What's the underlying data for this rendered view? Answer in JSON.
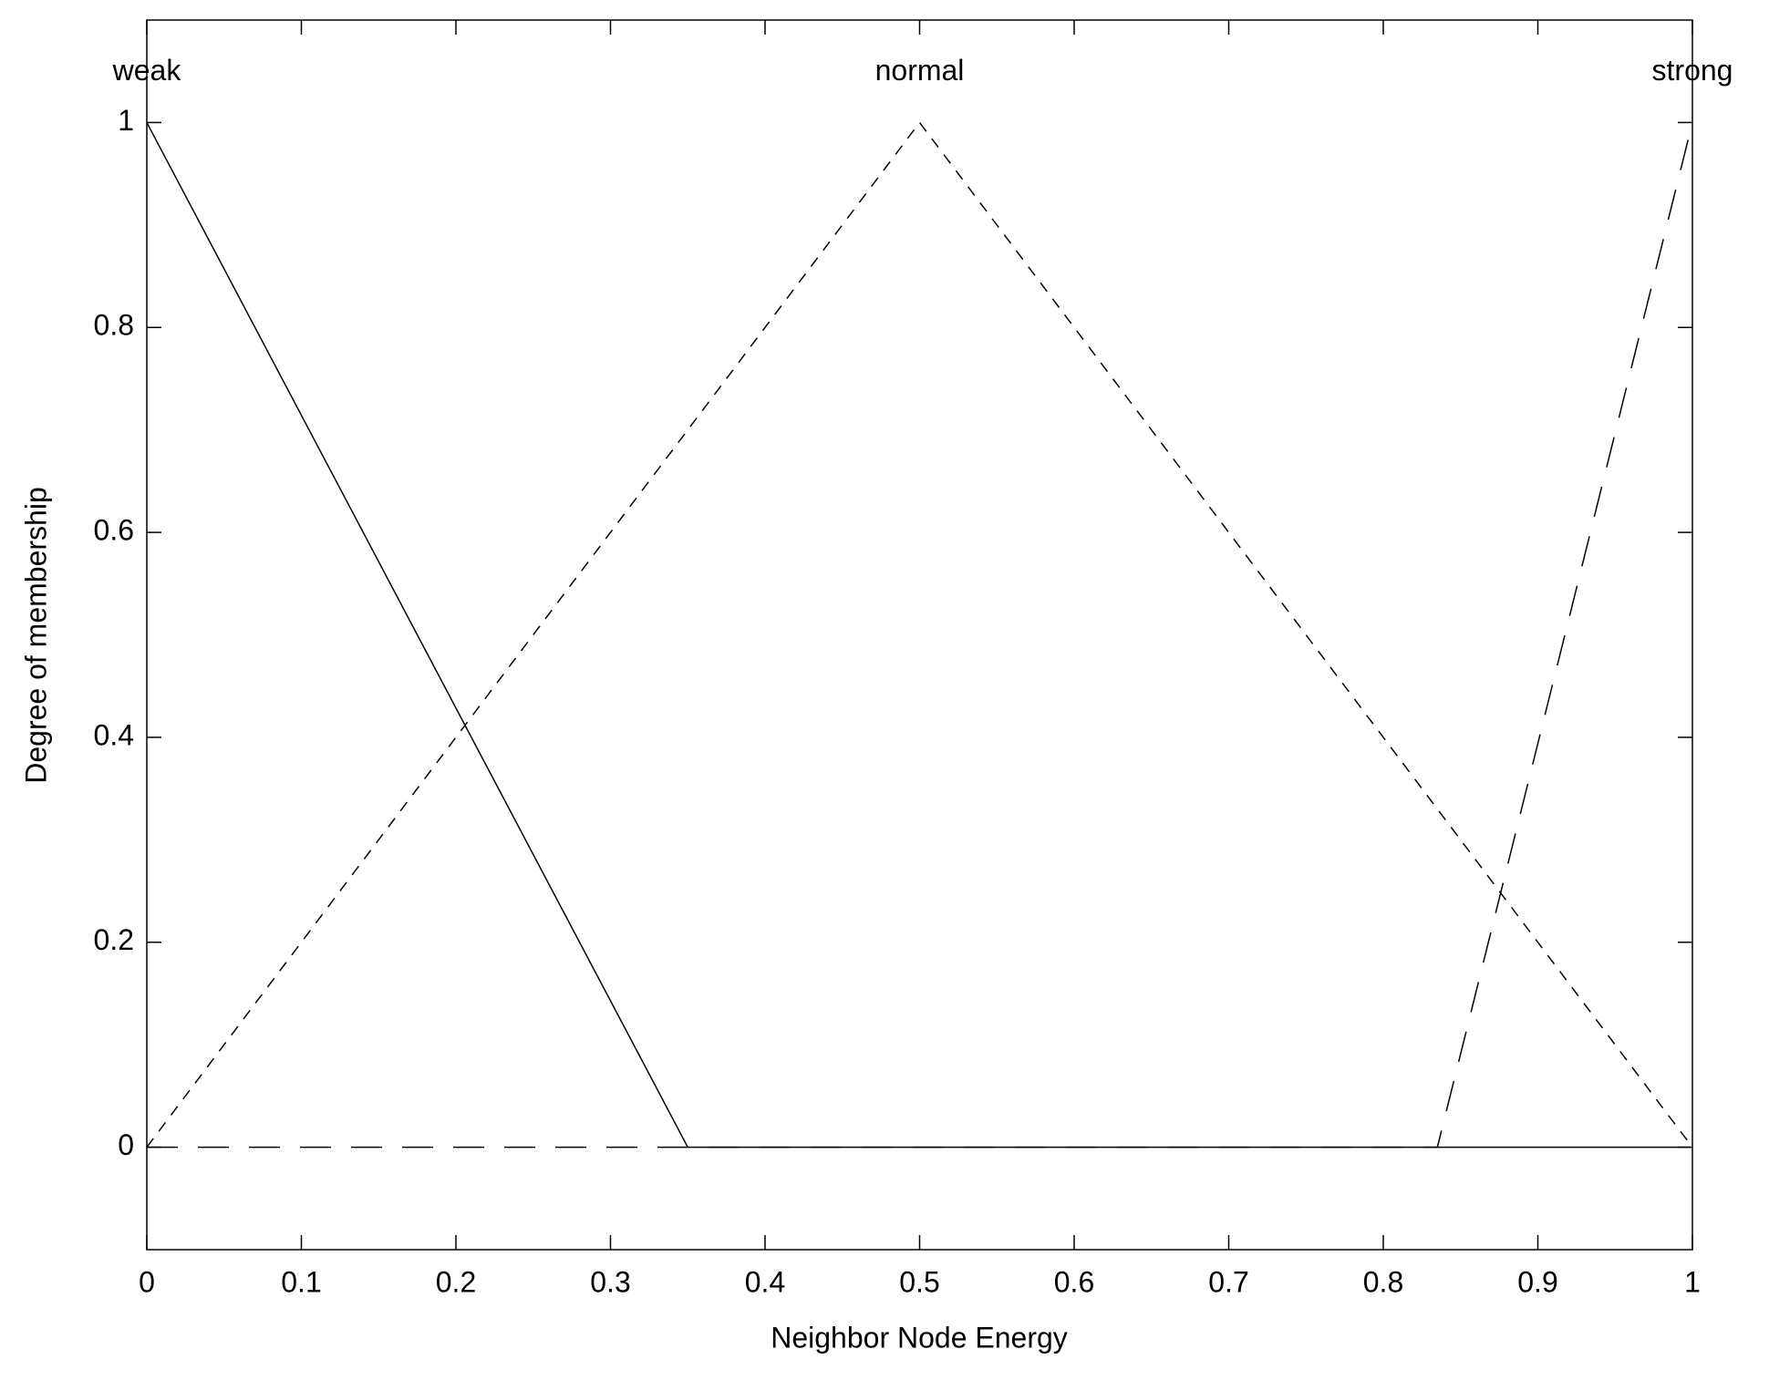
{
  "chart_data": {
    "type": "line",
    "xlabel": "Neighbor Node Energy",
    "ylabel": "Degree of membership",
    "xlim": [
      0,
      1
    ],
    "xticks": [
      0,
      0.1,
      0.2,
      0.3,
      0.4,
      0.5,
      0.6,
      0.7,
      0.8,
      0.9,
      1
    ],
    "ylim": [
      -0.1,
      1.1
    ],
    "yticks": [
      0,
      0.2,
      0.4,
      0.6,
      0.8,
      1
    ],
    "series": [
      {
        "name": "weak",
        "color": "#000000",
        "dash": "solid",
        "x": [
          0,
          0.35,
          1
        ],
        "values": [
          1,
          0,
          0
        ]
      },
      {
        "name": "normal",
        "color": "#000000",
        "dash": "dashed",
        "x": [
          0,
          0.5,
          1
        ],
        "values": [
          0,
          1,
          0
        ]
      },
      {
        "name": "strong",
        "color": "#000000",
        "dash": "longdash",
        "x": [
          0,
          0.835,
          1
        ],
        "values": [
          0,
          0,
          1
        ]
      }
    ]
  }
}
